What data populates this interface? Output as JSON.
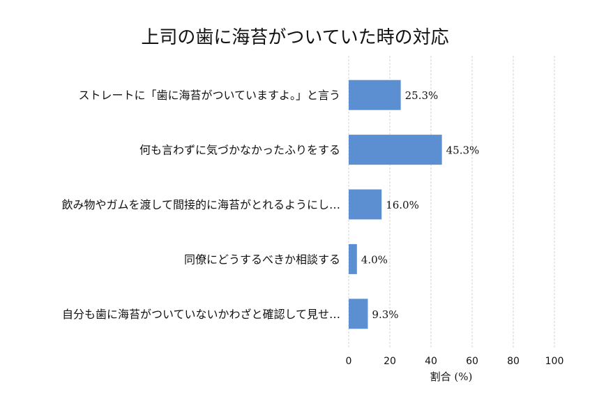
{
  "chart_data": {
    "type": "bar",
    "orientation": "horizontal",
    "title": "上司の歯に海苔がついていた時の対応",
    "xlabel": "割合 (%)",
    "ylabel": "",
    "xlim": [
      0,
      100
    ],
    "x_ticks": [
      "0",
      "20",
      "40",
      "60",
      "80",
      "100"
    ],
    "grid": true,
    "bar_color": "#5b8fd2",
    "categories": [
      "ストレートに「歯に海苔がついていますよ。」と言う",
      "何も言わずに気づかなかったふりをする",
      "飲み物やガムを渡して間接的に海苔がとれるようにし…",
      "同僚にどうするべきか相談する",
      "自分も歯に海苔がついていないかわざと確認して見せ…"
    ],
    "values": [
      25.3,
      45.3,
      16.0,
      4.0,
      9.3
    ],
    "value_labels": [
      "25.3%",
      "45.3%",
      "16.0%",
      "4.0%",
      "9.3%"
    ]
  }
}
